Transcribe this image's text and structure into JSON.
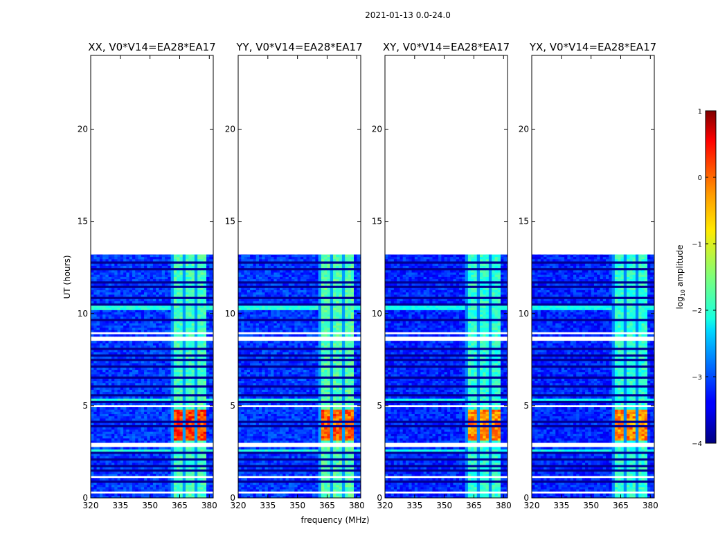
{
  "figure_title": "2021-01-13 0.0-24.0",
  "xlabel": "frequency (MHz)",
  "ylabel": "UT (hours)",
  "colorbar": {
    "label_prefix": "log",
    "label_sub": "10",
    "label_suffix": " amplitude",
    "range": [
      -4,
      1
    ],
    "ticks": [
      {
        "value": 1,
        "label": "1"
      },
      {
        "value": 0,
        "label": "0"
      },
      {
        "value": -1,
        "label": "−1"
      },
      {
        "value": -2,
        "label": "−2"
      },
      {
        "value": -3,
        "label": "−3"
      },
      {
        "value": -4,
        "label": "−4"
      }
    ],
    "colormap": "jet"
  },
  "chart_data": [
    {
      "type": "heatmap",
      "title": "XX, V0*V14=EA28*EA17",
      "xlabel": "frequency (MHz)",
      "ylabel": "UT (hours)",
      "xlim": [
        320,
        382
      ],
      "ylim": [
        0,
        24
      ],
      "xticks": [
        {
          "value": 320,
          "label": "320"
        },
        {
          "value": 335,
          "label": "335"
        },
        {
          "value": 350,
          "label": "350"
        },
        {
          "value": 365,
          "label": "365"
        },
        {
          "value": 380,
          "label": "380"
        }
      ],
      "yticks": [
        {
          "value": 0,
          "label": "0"
        },
        {
          "value": 5,
          "label": "5"
        },
        {
          "value": 10,
          "label": "10"
        },
        {
          "value": 15,
          "label": "15"
        },
        {
          "value": 20,
          "label": "20"
        }
      ],
      "data_extent_hours": [
        0,
        13.2
      ],
      "background_level": -3.1,
      "signal_band_mhz": [
        360.5,
        378
      ],
      "signal_level": -1.8,
      "strong_interval_hours": [
        3.1,
        4.8
      ],
      "strong_level": 0.1
    },
    {
      "type": "heatmap",
      "title": "YY, V0*V14=EA28*EA17",
      "xlabel": "frequency (MHz)",
      "ylabel": "UT (hours)",
      "xlim": [
        320,
        382
      ],
      "ylim": [
        0,
        24
      ],
      "xticks": [
        {
          "value": 320,
          "label": "320"
        },
        {
          "value": 335,
          "label": "335"
        },
        {
          "value": 350,
          "label": "350"
        },
        {
          "value": 365,
          "label": "365"
        },
        {
          "value": 380,
          "label": "380"
        }
      ],
      "yticks": [
        {
          "value": 0,
          "label": "0"
        },
        {
          "value": 5,
          "label": "5"
        },
        {
          "value": 10,
          "label": "10"
        },
        {
          "value": 15,
          "label": "15"
        },
        {
          "value": 20,
          "label": "20"
        }
      ],
      "data_extent_hours": [
        0,
        13.2
      ],
      "background_level": -3.1,
      "signal_band_mhz": [
        360.5,
        378
      ],
      "signal_level": -1.7,
      "strong_interval_hours": [
        3.1,
        4.8
      ],
      "strong_level": -0.1
    },
    {
      "type": "heatmap",
      "title": "XY, V0*V14=EA28*EA17",
      "xlabel": "frequency (MHz)",
      "ylabel": "UT (hours)",
      "xlim": [
        320,
        382
      ],
      "ylim": [
        0,
        24
      ],
      "xticks": [
        {
          "value": 320,
          "label": "320"
        },
        {
          "value": 335,
          "label": "335"
        },
        {
          "value": 350,
          "label": "350"
        },
        {
          "value": 365,
          "label": "365"
        },
        {
          "value": 380,
          "label": "380"
        }
      ],
      "yticks": [
        {
          "value": 0,
          "label": "0"
        },
        {
          "value": 5,
          "label": "5"
        },
        {
          "value": 10,
          "label": "10"
        },
        {
          "value": 15,
          "label": "15"
        },
        {
          "value": 20,
          "label": "20"
        }
      ],
      "data_extent_hours": [
        0,
        13.2
      ],
      "background_level": -3.2,
      "signal_band_mhz": [
        360.5,
        378
      ],
      "signal_level": -1.9,
      "strong_interval_hours": [
        3.1,
        4.8
      ],
      "strong_level": -0.3
    },
    {
      "type": "heatmap",
      "title": "YX, V0*V14=EA28*EA17",
      "xlabel": "frequency (MHz)",
      "ylabel": "UT (hours)",
      "xlim": [
        320,
        382
      ],
      "ylim": [
        0,
        24
      ],
      "xticks": [
        {
          "value": 320,
          "label": "320"
        },
        {
          "value": 335,
          "label": "335"
        },
        {
          "value": 350,
          "label": "350"
        },
        {
          "value": 365,
          "label": "365"
        },
        {
          "value": 380,
          "label": "380"
        }
      ],
      "yticks": [
        {
          "value": 0,
          "label": "0"
        },
        {
          "value": 5,
          "label": "5"
        },
        {
          "value": 10,
          "label": "10"
        },
        {
          "value": 15,
          "label": "15"
        },
        {
          "value": 20,
          "label": "20"
        }
      ],
      "data_extent_hours": [
        0,
        13.2
      ],
      "background_level": -3.2,
      "signal_band_mhz": [
        360.5,
        378
      ],
      "signal_level": -1.9,
      "strong_interval_hours": [
        3.1,
        4.8
      ],
      "strong_level": -0.3
    }
  ]
}
